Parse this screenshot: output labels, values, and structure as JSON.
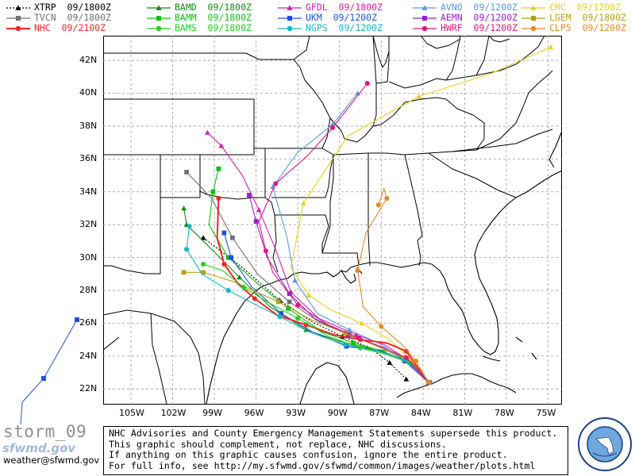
{
  "legend": [
    {
      "id": "xtrp",
      "label": "XTRP",
      "time": "09/1800Z",
      "color": "#000000",
      "marker": "triangle"
    },
    {
      "id": "bamd",
      "label": "BAMD",
      "time": "09/1800Z",
      "color": "#108a10",
      "marker": "triangle"
    },
    {
      "id": "gfdl",
      "label": "GFDL",
      "time": "09/1800Z",
      "color": "#d020b0",
      "marker": "triangle"
    },
    {
      "id": "avno",
      "label": "AVNO",
      "time": "09/1200Z",
      "color": "#5a9ae0",
      "marker": "triangle"
    },
    {
      "id": "cmc",
      "label": "CMC",
      "time": "09/1200Z",
      "color": "#e6d020",
      "marker": "triangle"
    },
    {
      "id": "tvcn",
      "label": "TVCN",
      "time": "09/1800Z",
      "color": "#707070",
      "marker": "square"
    },
    {
      "id": "bamm",
      "label": "BAMM",
      "time": "09/1800Z",
      "color": "#10c010",
      "marker": "square"
    },
    {
      "id": "ukm",
      "label": "UKM",
      "time": "09/1200Z",
      "color": "#2050e0",
      "marker": "square"
    },
    {
      "id": "aemn",
      "label": "AEMN",
      "time": "09/1200Z",
      "color": "#9a20c8",
      "marker": "square"
    },
    {
      "id": "lgem",
      "label": "LGEM",
      "time": "09/1800Z",
      "color": "#b8a010",
      "marker": "square"
    },
    {
      "id": "nhc",
      "label": "NHC",
      "time": "09/2100Z",
      "color": "#f02828",
      "marker": "circle"
    },
    {
      "id": "bams",
      "label": "BAMS",
      "time": "09/1800Z",
      "color": "#20d020",
      "marker": "circle"
    },
    {
      "id": "ngps",
      "label": "NGPS",
      "time": "09/1200Z",
      "color": "#10b8c8",
      "marker": "circle"
    },
    {
      "id": "hwrf",
      "label": "HWRF",
      "time": "09/1200Z",
      "color": "#e01880",
      "marker": "circle"
    },
    {
      "id": "clp5",
      "label": "CLP5",
      "time": "09/1200Z",
      "color": "#e88a20",
      "marker": "circle"
    }
  ],
  "lat_labels": [
    "42N",
    "40N",
    "38N",
    "36N",
    "34N",
    "32N",
    "30N",
    "28N",
    "26N",
    "24N",
    "22N"
  ],
  "lon_labels": [
    "105W",
    "102W",
    "99W",
    "96W",
    "93W",
    "90W",
    "87W",
    "84W",
    "81W",
    "78W",
    "75W"
  ],
  "notice_lines": [
    "NHC Advisories and County Emergency Management Statements supersede this product.",
    "This graphic should complement, not replace, NHC discussions.",
    "If anything on this graphic causes confusion, ignore the entire product.",
    "For full info, see  http://my.sfwmd.gov/sfwmd/common/images/weather/plots.html"
  ],
  "storm_name": "storm_09",
  "site_logo_text": "sfwmd.gov",
  "email": "weather@sfwmd.gov",
  "tracks": [
    {
      "id": "xtrp",
      "color": "#000000",
      "marker": "triangle",
      "points": [
        [
          -85.2,
          22.6
        ],
        [
          -86.4,
          23.6
        ],
        [
          -87.8,
          24.5
        ],
        [
          -89.8,
          25.2
        ],
        [
          -92.0,
          26.1
        ],
        [
          -94.3,
          27.4
        ],
        [
          -97.0,
          29.4
        ],
        [
          -99.8,
          31.2
        ]
      ]
    },
    {
      "id": "bamd",
      "color": "#108a10",
      "marker": "triangle",
      "points": [
        [
          -83.5,
          22.4
        ],
        [
          -85.0,
          23.8
        ],
        [
          -86.5,
          24.3
        ],
        [
          -88.0,
          24.5
        ],
        [
          -90.0,
          24.9
        ],
        [
          -92.4,
          25.6
        ],
        [
          -95.0,
          27.0
        ],
        [
          -97.2,
          28.8
        ],
        [
          -99.2,
          30.5
        ],
        [
          -101.0,
          32.0
        ],
        [
          -101.2,
          33.0
        ]
      ]
    },
    {
      "id": "gfdl",
      "color": "#d020b0",
      "marker": "triangle",
      "points": [
        [
          -83.5,
          22.4
        ],
        [
          -85.3,
          23.9
        ],
        [
          -86.8,
          24.7
        ],
        [
          -88.8,
          25.3
        ],
        [
          -91.5,
          26.3
        ],
        [
          -93.5,
          27.9
        ],
        [
          -94.6,
          30.5
        ],
        [
          -95.8,
          32.9
        ],
        [
          -97.0,
          35.0
        ],
        [
          -98.5,
          36.8
        ],
        [
          -99.5,
          37.6
        ]
      ]
    },
    {
      "id": "avno",
      "color": "#5a9ae0",
      "marker": "triangle",
      "points": [
        [
          -83.6,
          22.4
        ],
        [
          -85.4,
          23.8
        ],
        [
          -87.2,
          24.8
        ],
        [
          -89.3,
          25.6
        ],
        [
          -91.6,
          26.6
        ],
        [
          -93.2,
          28.6
        ],
        [
          -93.8,
          31.3
        ],
        [
          -94.8,
          34.3
        ],
        [
          -93.0,
          36.4
        ],
        [
          -90.5,
          38.1
        ],
        [
          -88.7,
          40.0
        ]
      ]
    },
    {
      "id": "cmc",
      "color": "#e6d020",
      "marker": "triangle",
      "points": [
        [
          -83.5,
          22.4
        ],
        [
          -84.9,
          23.8
        ],
        [
          -86.4,
          25.0
        ],
        [
          -88.4,
          26.0
        ],
        [
          -90.6,
          26.8
        ],
        [
          -92.2,
          27.7
        ],
        [
          -93.5,
          29.4
        ],
        [
          -92.6,
          33.3
        ],
        [
          -89.4,
          37.4
        ],
        [
          -84.3,
          39.8
        ],
        [
          -79.1,
          41.2
        ],
        [
          -74.8,
          42.8
        ]
      ]
    },
    {
      "id": "tvcn",
      "color": "#707070",
      "marker": "square",
      "points": [
        [
          -83.5,
          22.4
        ],
        [
          -85.3,
          23.8
        ],
        [
          -87.2,
          24.6
        ],
        [
          -89.3,
          25.3
        ],
        [
          -91.5,
          26.1
        ],
        [
          -93.6,
          27.3
        ],
        [
          -95.9,
          29.0
        ],
        [
          -97.7,
          31.2
        ],
        [
          -99.2,
          33.6
        ],
        [
          -101.0,
          35.2
        ]
      ]
    },
    {
      "id": "bamm",
      "color": "#10c010",
      "marker": "square",
      "points": [
        [
          -83.5,
          22.4
        ],
        [
          -85.2,
          23.7
        ],
        [
          -86.9,
          24.3
        ],
        [
          -89.0,
          24.8
        ],
        [
          -91.3,
          25.5
        ],
        [
          -93.7,
          26.9
        ],
        [
          -95.6,
          28.2
        ],
        [
          -98.0,
          30.0
        ],
        [
          -99.4,
          32.0
        ],
        [
          -99.1,
          34.0
        ],
        [
          -98.7,
          35.4
        ]
      ]
    },
    {
      "id": "ukm",
      "color": "#2050e0",
      "marker": "square",
      "points": [
        [
          -83.6,
          22.4
        ],
        [
          -85.3,
          23.7
        ],
        [
          -87.0,
          24.3
        ],
        [
          -89.5,
          24.6
        ],
        [
          -92.0,
          25.5
        ],
        [
          -94.2,
          26.6
        ],
        [
          -96.3,
          28.2
        ],
        [
          -97.8,
          30.0
        ],
        [
          -98.3,
          31.5
        ]
      ]
    },
    {
      "id": "aemn",
      "color": "#9a20c8",
      "marker": "square",
      "points": [
        [
          -83.6,
          22.4
        ],
        [
          -85.3,
          23.8
        ],
        [
          -87.2,
          24.6
        ],
        [
          -89.4,
          25.3
        ],
        [
          -91.8,
          26.3
        ],
        [
          -93.6,
          27.8
        ],
        [
          -95.2,
          30.0
        ],
        [
          -96.0,
          32.2
        ],
        [
          -96.5,
          33.8
        ]
      ]
    },
    {
      "id": "lgem",
      "color": "#b8a010",
      "marker": "square",
      "points": [
        [
          -83.5,
          22.4
        ],
        [
          -85.4,
          23.9
        ],
        [
          -87.3,
          24.6
        ],
        [
          -89.6,
          25.4
        ],
        [
          -92.0,
          26.2
        ],
        [
          -94.4,
          27.3
        ],
        [
          -97.5,
          28.5
        ],
        [
          -99.8,
          29.1
        ],
        [
          -101.2,
          29.1
        ]
      ]
    },
    {
      "id": "nhc",
      "color": "#f02828",
      "marker": "circle",
      "points": [
        [
          -83.6,
          22.4
        ],
        [
          -85.2,
          24.3
        ],
        [
          -86.6,
          24.8
        ],
        [
          -88.5,
          25.0
        ],
        [
          -90.4,
          25.3
        ],
        [
          -92.4,
          25.9
        ],
        [
          -94.5,
          26.5
        ],
        [
          -96.1,
          27.5
        ],
        [
          -97.3,
          28.4
        ],
        [
          -98.3,
          29.6
        ],
        [
          -98.8,
          31.2
        ],
        [
          -98.7,
          33.6
        ]
      ]
    },
    {
      "id": "bams",
      "color": "#20d020",
      "marker": "circle",
      "points": [
        [
          -83.5,
          22.4
        ],
        [
          -85.0,
          23.6
        ],
        [
          -86.6,
          24.1
        ],
        [
          -88.5,
          24.5
        ],
        [
          -90.8,
          25.2
        ],
        [
          -93.0,
          26.3
        ],
        [
          -95.2,
          27.3
        ],
        [
          -96.9,
          28.2
        ],
        [
          -98.4,
          29.2
        ],
        [
          -99.8,
          29.6
        ]
      ]
    },
    {
      "id": "ngps",
      "color": "#10b8c8",
      "marker": "circle",
      "points": [
        [
          -83.5,
          22.4
        ],
        [
          -85.3,
          23.8
        ],
        [
          -87.2,
          24.3
        ],
        [
          -89.6,
          24.7
        ],
        [
          -92.0,
          25.4
        ],
        [
          -94.3,
          26.4
        ],
        [
          -96.2,
          27.2
        ],
        [
          -98.0,
          28.0
        ],
        [
          -99.9,
          29.0
        ],
        [
          -101.0,
          30.5
        ],
        [
          -100.8,
          31.9
        ]
      ]
    },
    {
      "id": "hwrf",
      "color": "#e01880",
      "marker": "circle",
      "points": [
        [
          -83.6,
          22.4
        ],
        [
          -85.2,
          23.9
        ],
        [
          -86.8,
          24.5
        ],
        [
          -88.6,
          25.1
        ],
        [
          -90.8,
          25.9
        ],
        [
          -93.0,
          27.1
        ],
        [
          -94.8,
          29.1
        ],
        [
          -95.3,
          30.4
        ],
        [
          -95.8,
          32.2
        ],
        [
          -94.6,
          34.5
        ],
        [
          -92.3,
          36.2
        ],
        [
          -90.5,
          37.9
        ],
        [
          -88.0,
          40.6
        ]
      ]
    },
    {
      "id": "clp5",
      "color": "#e88a20",
      "marker": "circle",
      "points": [
        [
          -83.6,
          22.4
        ],
        [
          -84.5,
          23.7
        ],
        [
          -85.5,
          24.7
        ],
        [
          -87.0,
          25.8
        ],
        [
          -88.3,
          27.0
        ],
        [
          -88.7,
          29.2
        ],
        [
          -88.1,
          31.5
        ],
        [
          -86.6,
          33.6
        ],
        [
          -86.8,
          34.2
        ],
        [
          -87.2,
          33.2
        ]
      ]
    }
  ]
}
